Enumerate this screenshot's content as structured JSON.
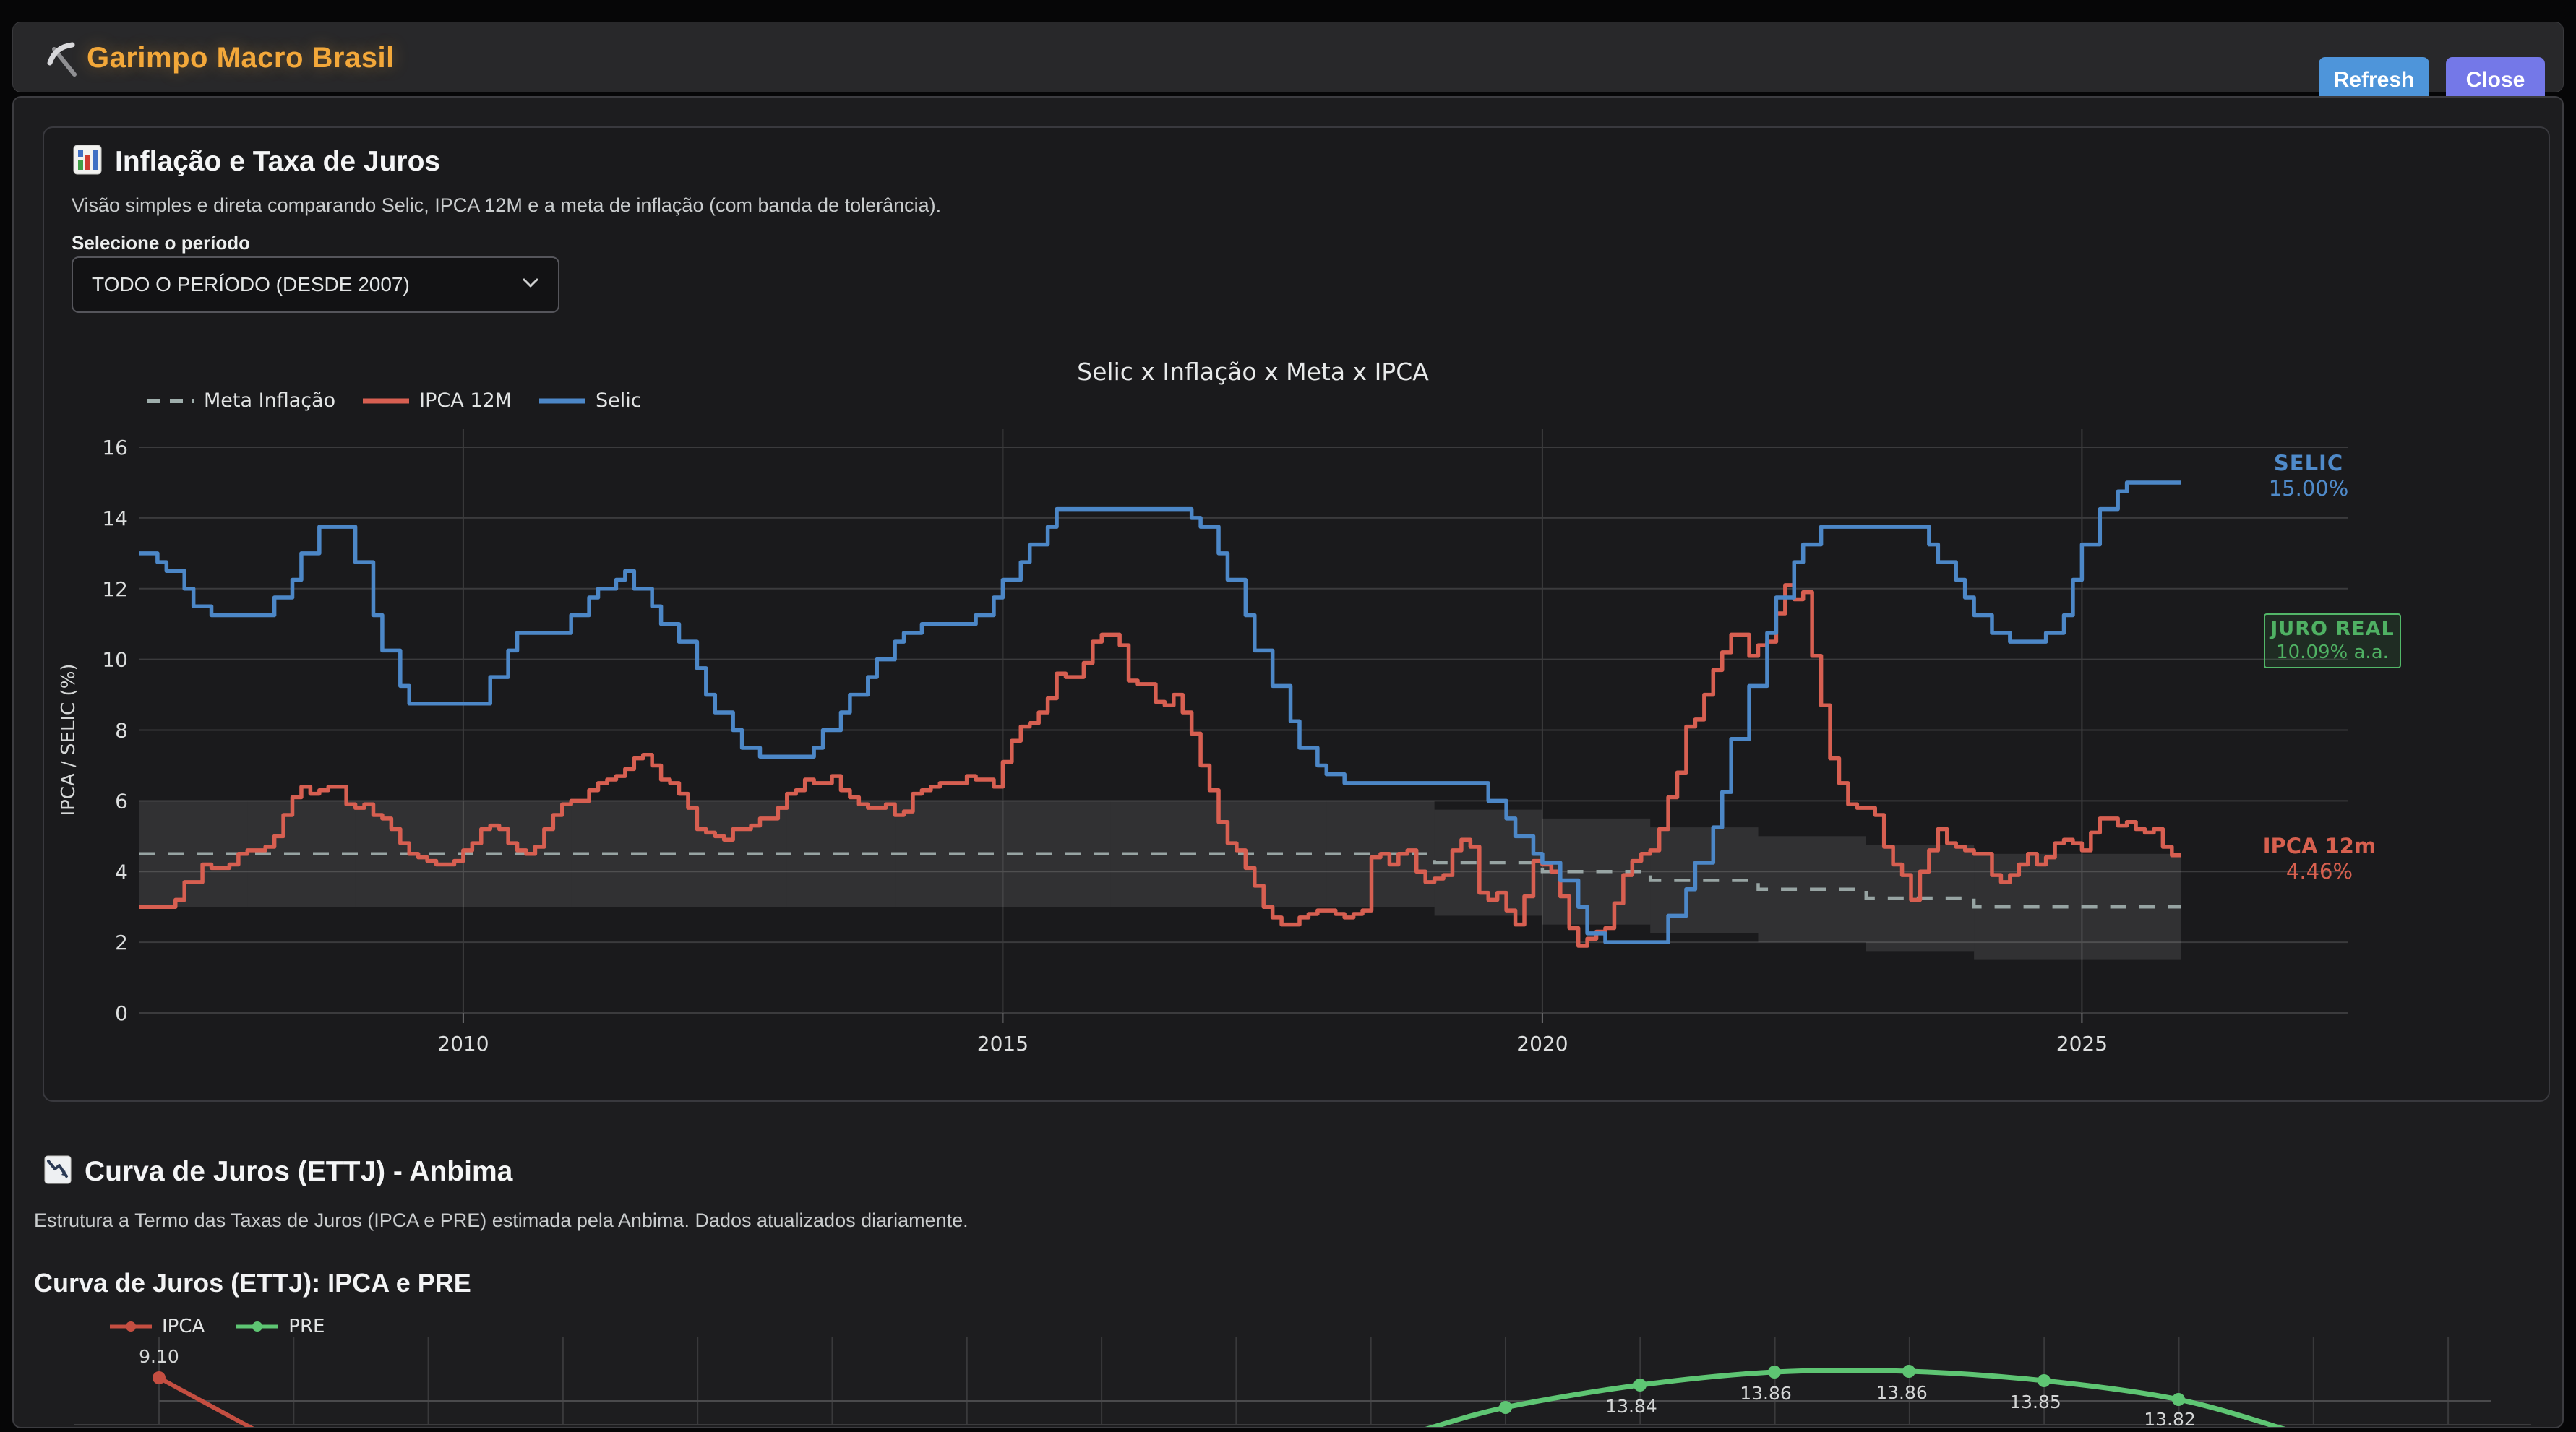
{
  "header": {
    "title": "Garimpo Macro Brasil",
    "refresh_label": "Refresh",
    "close_label": "Close"
  },
  "section_macro": {
    "title": "Inflação e Taxa de Juros",
    "subtitle": "Visão simples e direta comparando Selic, IPCA 12M e a meta de inflação (com banda de tolerância).",
    "period_label": "Selecione o período",
    "period_value": "TODO O PERÍODO (DESDE 2007)"
  },
  "section_ettj": {
    "title": "Curva de Juros (ETTJ) - Anbima",
    "subtitle": "Estrutura a Termo das Taxas de Juros (IPCA e PRE) estimada pela Anbima. Dados atualizados diariamente."
  },
  "colors": {
    "accent_orange": "#f3a83a",
    "refresh_blue": "#4e95da",
    "close_indigo": "#7478e8",
    "selic_blue": "#4c87c7",
    "ipca_red": "#d75f51",
    "meta_gray": "#9faeac",
    "pre_green": "#5ec573",
    "juro_real_green": "#4fb163",
    "grid": "#3b3b3d",
    "band": "rgba(255,255,255,0.10)"
  },
  "chart_data": [
    {
      "type": "line",
      "title": "Selic x Inflação x Meta x IPCA",
      "ylabel": "IPCA / SELIC (%)",
      "legend": [
        "Meta Inflação",
        "IPCA 12M",
        "Selic"
      ],
      "x_start": 2007.0,
      "x_step_months": 1,
      "x_end": 2025.917,
      "xticks": [
        2010,
        2015,
        2020,
        2025
      ],
      "yticks": [
        0,
        2,
        4,
        6,
        8,
        10,
        12,
        14,
        16
      ],
      "ylim": [
        0,
        16.5
      ],
      "grid": true,
      "band_halfwidth": 1.5,
      "meta_by_year": {
        "2007": 4.5,
        "2008": 4.5,
        "2009": 4.5,
        "2010": 4.5,
        "2011": 4.5,
        "2012": 4.5,
        "2013": 4.5,
        "2014": 4.5,
        "2015": 4.5,
        "2016": 4.5,
        "2017": 4.5,
        "2018": 4.5,
        "2019": 4.25,
        "2020": 4.0,
        "2021": 3.75,
        "2022": 3.5,
        "2023": 3.25,
        "2024": 3.0,
        "2025": 3.0
      },
      "selic_monthly": [
        13,
        13,
        12.75,
        12.5,
        12.5,
        12,
        11.5,
        11.5,
        11.25,
        11.25,
        11.25,
        11.25,
        11.25,
        11.25,
        11.25,
        11.75,
        11.75,
        12.25,
        13,
        13,
        13.75,
        13.75,
        13.75,
        13.75,
        12.75,
        12.75,
        11.25,
        10.25,
        10.25,
        9.25,
        8.75,
        8.75,
        8.75,
        8.75,
        8.75,
        8.75,
        8.75,
        8.75,
        8.75,
        9.5,
        9.5,
        10.25,
        10.75,
        10.75,
        10.75,
        10.75,
        10.75,
        10.75,
        11.25,
        11.25,
        11.75,
        12,
        12,
        12.25,
        12.5,
        12,
        12,
        11.5,
        11,
        11,
        10.5,
        10.5,
        9.75,
        9,
        8.5,
        8.5,
        8,
        7.5,
        7.5,
        7.25,
        7.25,
        7.25,
        7.25,
        7.25,
        7.25,
        7.5,
        8,
        8,
        8.5,
        9,
        9,
        9.5,
        10,
        10,
        10.5,
        10.75,
        10.75,
        11,
        11,
        11,
        11,
        11,
        11,
        11.25,
        11.25,
        11.75,
        12.25,
        12.25,
        12.75,
        13.25,
        13.25,
        13.75,
        14.25,
        14.25,
        14.25,
        14.25,
        14.25,
        14.25,
        14.25,
        14.25,
        14.25,
        14.25,
        14.25,
        14.25,
        14.25,
        14.25,
        14.25,
        14,
        13.75,
        13.75,
        13,
        12.25,
        12.25,
        11.25,
        10.25,
        10.25,
        9.25,
        9.25,
        8.25,
        7.5,
        7.5,
        7,
        6.75,
        6.75,
        6.5,
        6.5,
        6.5,
        6.5,
        6.5,
        6.5,
        6.5,
        6.5,
        6.5,
        6.5,
        6.5,
        6.5,
        6.5,
        6.5,
        6.5,
        6.5,
        6,
        6,
        5.5,
        5,
        5,
        4.5,
        4.25,
        4.25,
        3.75,
        3.75,
        3,
        2.25,
        2.25,
        2,
        2,
        2,
        2,
        2,
        2,
        2,
        2.75,
        2.75,
        3.5,
        4.25,
        4.25,
        5.25,
        6.25,
        7.75,
        7.75,
        9.25,
        9.25,
        10.75,
        11.75,
        11.75,
        12.75,
        13.25,
        13.25,
        13.75,
        13.75,
        13.75,
        13.75,
        13.75,
        13.75,
        13.75,
        13.75,
        13.75,
        13.75,
        13.75,
        13.75,
        13.25,
        12.75,
        12.75,
        12.25,
        11.75,
        11.25,
        11.25,
        10.75,
        10.75,
        10.5,
        10.5,
        10.5,
        10.5,
        10.75,
        10.75,
        11.25,
        12.25,
        13.25,
        13.25,
        14.25,
        14.25,
        14.75,
        15,
        15,
        15,
        15,
        15,
        15
      ],
      "ipca_monthly": [
        3,
        3,
        3,
        3,
        3.2,
        3.7,
        3.7,
        4.2,
        4.1,
        4.1,
        4.2,
        4.5,
        4.6,
        4.6,
        4.7,
        5,
        5.6,
        6.1,
        6.4,
        6.2,
        6.3,
        6.4,
        6.4,
        5.9,
        5.8,
        5.9,
        5.6,
        5.5,
        5.2,
        4.8,
        4.5,
        4.4,
        4.3,
        4.2,
        4.2,
        4.3,
        4.6,
        4.8,
        5.2,
        5.3,
        5.2,
        4.8,
        4.6,
        4.5,
        4.7,
        5.2,
        5.6,
        5.9,
        6,
        6,
        6.3,
        6.5,
        6.6,
        6.7,
        6.9,
        7.2,
        7.3,
        7,
        6.6,
        6.5,
        6.2,
        5.8,
        5.2,
        5.1,
        5,
        4.9,
        5.2,
        5.2,
        5.3,
        5.5,
        5.5,
        5.8,
        6.2,
        6.3,
        6.6,
        6.5,
        6.5,
        6.7,
        6.3,
        6.1,
        5.9,
        5.8,
        5.8,
        5.9,
        5.6,
        5.7,
        6.2,
        6.3,
        6.4,
        6.5,
        6.5,
        6.5,
        6.7,
        6.6,
        6.6,
        6.4,
        7.1,
        7.7,
        8.1,
        8.2,
        8.5,
        8.9,
        9.6,
        9.5,
        9.5,
        9.9,
        10.5,
        10.7,
        10.7,
        10.4,
        9.4,
        9.3,
        9.3,
        8.8,
        8.7,
        9,
        8.5,
        7.9,
        7,
        6.3,
        5.4,
        4.8,
        4.6,
        4.1,
        3.6,
        3,
        2.7,
        2.5,
        2.5,
        2.7,
        2.8,
        2.9,
        2.9,
        2.8,
        2.7,
        2.8,
        2.9,
        4.4,
        4.5,
        4.2,
        4.5,
        4.6,
        4,
        3.7,
        3.8,
        3.9,
        4.6,
        4.9,
        4.7,
        3.4,
        3.2,
        3.4,
        2.9,
        2.5,
        3.3,
        4.3,
        4.2,
        4,
        3.3,
        2.4,
        1.9,
        2.1,
        2.3,
        2.4,
        3.1,
        3.9,
        4.3,
        4.5,
        4.6,
        5.2,
        6.1,
        6.8,
        8.1,
        8.3,
        9,
        9.7,
        10.2,
        10.7,
        10.7,
        10.1,
        10.4,
        10.5,
        11.3,
        12.1,
        11.7,
        11.9,
        10.1,
        8.7,
        7.2,
        6.5,
        5.9,
        5.8,
        5.8,
        5.6,
        4.7,
        4.2,
        3.9,
        3.2,
        4,
        4.6,
        5.2,
        4.8,
        4.7,
        4.6,
        4.5,
        4.5,
        3.9,
        3.7,
        3.9,
        4.2,
        4.5,
        4.2,
        4.4,
        4.8,
        4.9,
        4.8,
        4.6,
        5.1,
        5.5,
        5.5,
        5.3,
        5.4,
        5.2,
        5.1,
        5.2,
        4.7,
        4.46
      ],
      "annotations": [
        {
          "name": "selic",
          "label": "SELIC",
          "value": "15.00%"
        },
        {
          "name": "juro-real",
          "label": "JURO REAL",
          "value": "10.09% a.a."
        },
        {
          "name": "ipca",
          "label": "IPCA 12m",
          "value": "4.46%"
        }
      ]
    },
    {
      "type": "line",
      "title": "Curva de Juros (ETTJ): IPCA e PRE",
      "legend": [
        "IPCA",
        "PRE"
      ],
      "grid": true,
      "series": [
        {
          "name": "IPCA",
          "visible_point_labels": [
            "9.10"
          ],
          "visible_point_values": [
            9.1
          ]
        },
        {
          "name": "PRE",
          "visible_point_labels": [
            "13.84",
            "13.86",
            "13.86",
            "13.85",
            "13.82"
          ],
          "visible_point_values": [
            13.84,
            13.86,
            13.86,
            13.85,
            13.82
          ]
        }
      ]
    }
  ]
}
